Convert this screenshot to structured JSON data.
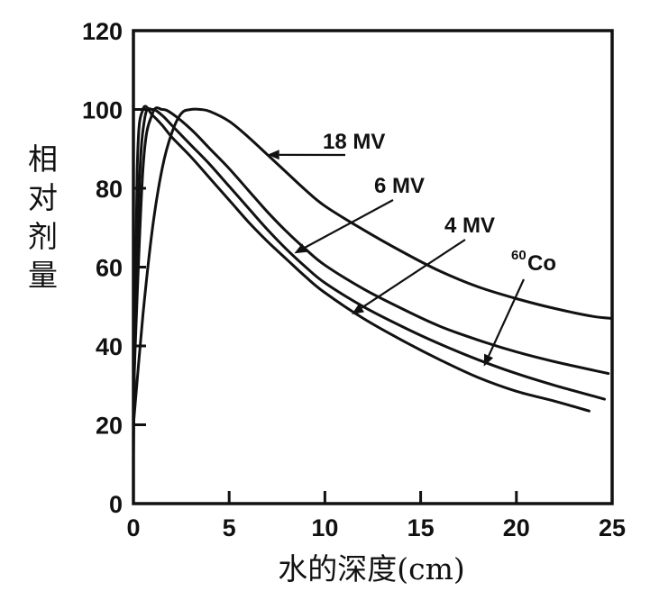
{
  "chart_data": {
    "type": "line",
    "title": "",
    "xlabel": "水的深度(cm)",
    "ylabel": "相对剂量",
    "xlim": [
      0,
      25
    ],
    "ylim": [
      0,
      120
    ],
    "xticks": [
      "0",
      "5",
      "10",
      "15",
      "20",
      "25"
    ],
    "yticks": [
      "0",
      "20",
      "40",
      "60",
      "80",
      "100",
      "120"
    ],
    "grid": false,
    "colors": {
      "line": "#111111",
      "background": "#ffffff"
    },
    "series": [
      {
        "name": "18 MV",
        "x": [
          0,
          0.5,
          1,
          1.5,
          2,
          2.5,
          3,
          3.5,
          4,
          5,
          6,
          7,
          8,
          9,
          10,
          12,
          14,
          16,
          18,
          20,
          22,
          24,
          25
        ],
        "values": [
          20,
          48,
          70,
          85,
          94,
          99,
          100,
          100,
          99.5,
          97,
          93,
          88.5,
          84,
          79.5,
          75.5,
          69.5,
          64,
          59,
          55,
          52,
          49.5,
          47.5,
          47
        ]
      },
      {
        "name": "6 MV",
        "x": [
          0,
          0.5,
          1,
          1.5,
          2,
          3,
          4,
          5,
          6,
          7,
          8,
          9,
          10,
          12,
          14,
          16,
          18,
          20,
          22,
          24.8
        ],
        "values": [
          28,
          85,
          99,
          100,
          99,
          95,
          90,
          85,
          79.5,
          74,
          69,
          64.5,
          60.5,
          54.5,
          49.5,
          45,
          41.5,
          38.5,
          36,
          33
        ]
      },
      {
        "name": "4 MV",
        "x": [
          0,
          0.3,
          0.6,
          1,
          1.5,
          2,
          3,
          4,
          5,
          6,
          7,
          8,
          9,
          10,
          12,
          14,
          16,
          18,
          20,
          22,
          24.6
        ],
        "values": [
          25,
          80,
          98,
          100,
          98.5,
          96,
          91,
          86,
          80.5,
          75,
          69.5,
          64.5,
          60,
          56,
          50,
          45,
          40.5,
          36.5,
          33,
          30,
          26.5
        ]
      },
      {
        "name": "60Co",
        "x": [
          0,
          0.2,
          0.5,
          1,
          1.5,
          2,
          3,
          4,
          5,
          6,
          7,
          8,
          9,
          10,
          12,
          14,
          16,
          18,
          20,
          22,
          23.8
        ],
        "values": [
          12,
          85,
          100,
          98.5,
          96,
          93,
          88,
          82.5,
          77,
          71.5,
          66.5,
          62,
          57.5,
          53.5,
          47,
          41.5,
          36.5,
          32,
          28.5,
          26,
          23.5
        ]
      }
    ],
    "annotations": [
      {
        "series": "18 MV",
        "label": "18 MV",
        "at": [
          7,
          88.5
        ]
      },
      {
        "series": "6 MV",
        "label": "6 MV",
        "at": [
          8.4,
          63.5
        ]
      },
      {
        "series": "4 MV",
        "label": "4 MV",
        "at": [
          11.4,
          48
        ]
      },
      {
        "series": "60Co",
        "label": "Co",
        "superscript": "60",
        "at": [
          18.3,
          34.8
        ]
      }
    ]
  }
}
